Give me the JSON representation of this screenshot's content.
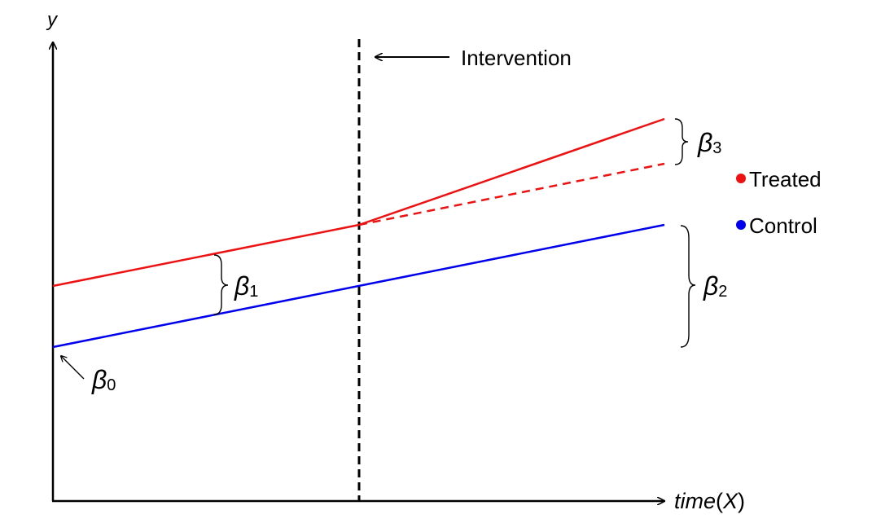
{
  "axes": {
    "y_label": "y",
    "x_label_main": "time",
    "x_label_paren_open": "(",
    "x_label_var": "X",
    "x_label_paren_close": ")"
  },
  "intervention_label": "Intervention",
  "betas": {
    "b0": {
      "symbol": "β",
      "sub": "0"
    },
    "b1": {
      "symbol": "β",
      "sub": "1"
    },
    "b2": {
      "symbol": "β",
      "sub": "2"
    },
    "b3": {
      "symbol": "β",
      "sub": "3"
    }
  },
  "legend": {
    "treated": {
      "label": "Treated",
      "color": "#ee1111"
    },
    "control": {
      "label": "Control",
      "color": "#0000ee"
    }
  }
}
